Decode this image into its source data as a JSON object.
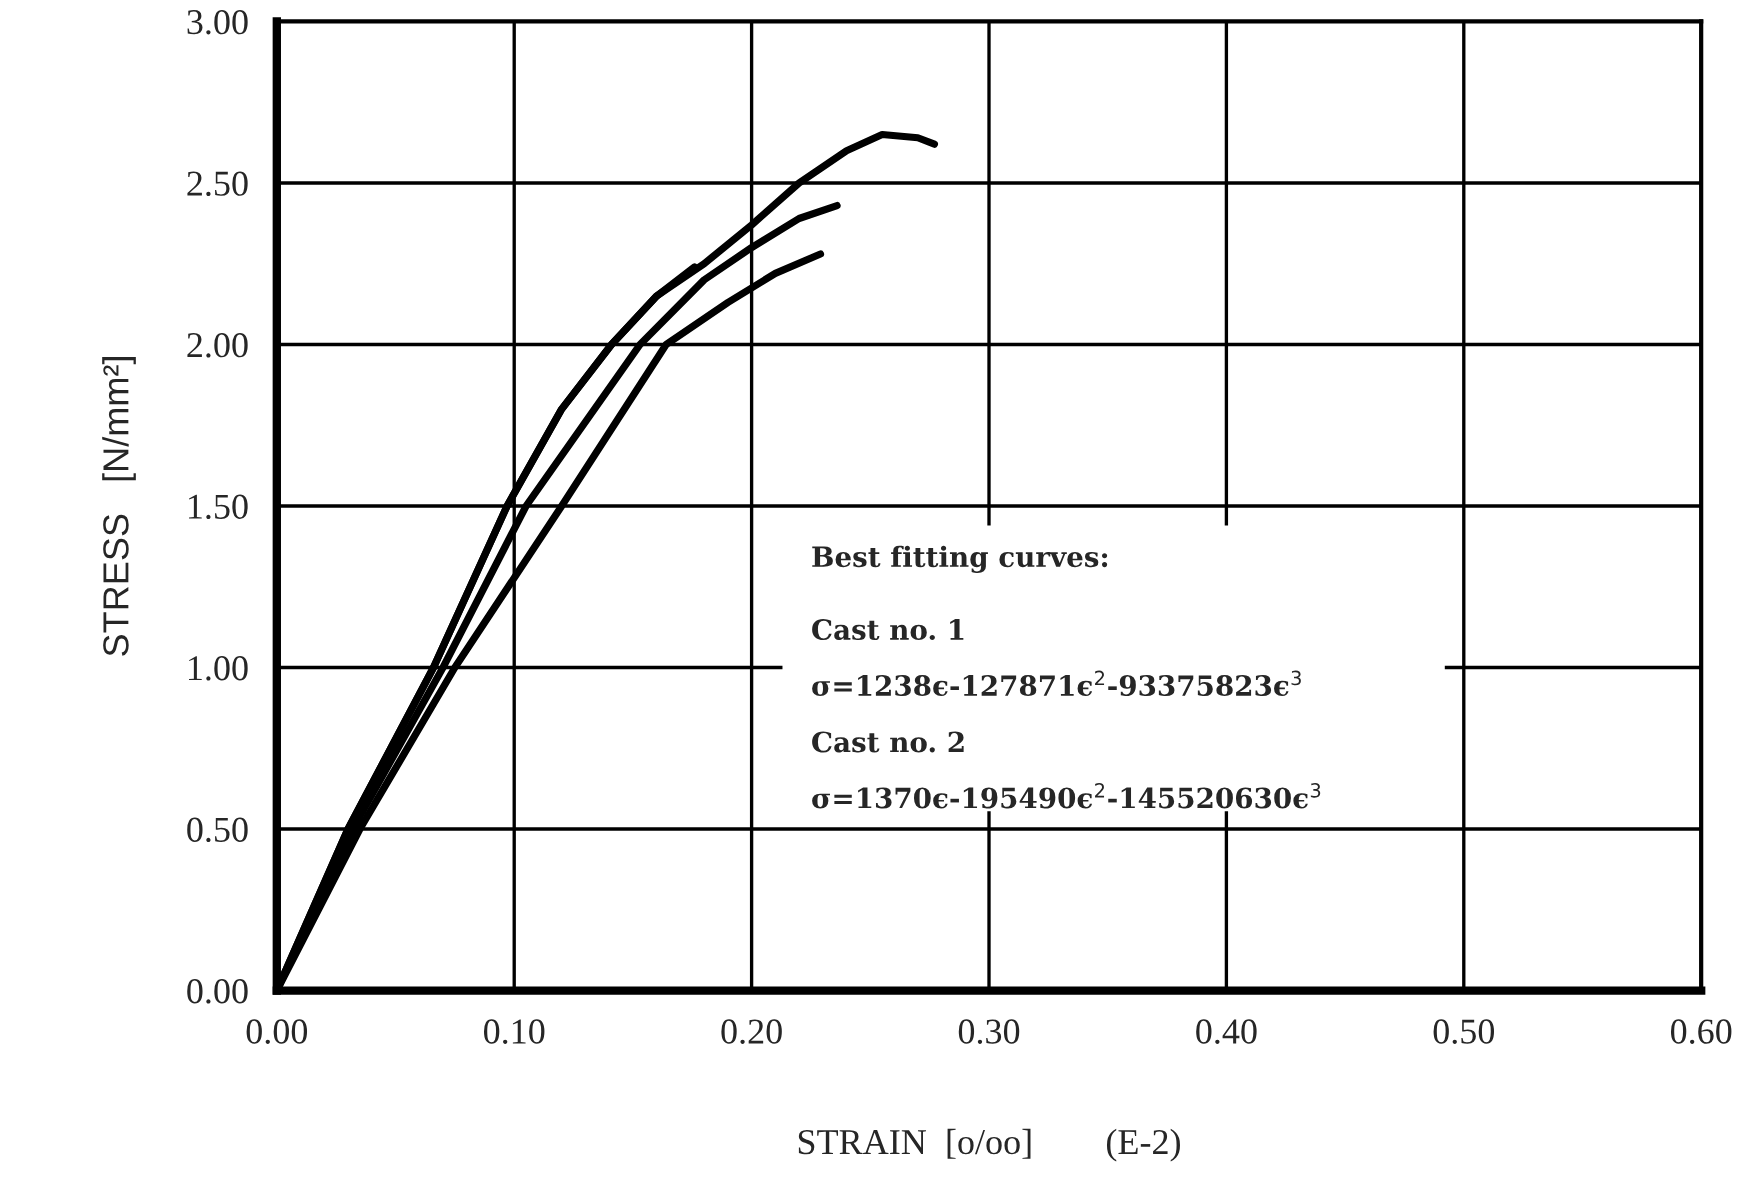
{
  "chart_data": {
    "type": "line",
    "xlabel": "STRAIN  [o/oo]        (E-2)",
    "ylabel": "STRESS   [N/mm²]",
    "annotations": [
      "Best fitting curves:",
      "Cast no. 1",
      "σ=1238ϵ-127871ϵ$^{2}$-93375823ϵ$^{3}$",
      "Cast no. 2",
      "σ=1370ϵ-195490ϵ$^{2}$-145520630ϵ$^{3}$"
    ],
    "xlim": [
      0,
      0.6
    ],
    "ylim": [
      0,
      3.0
    ],
    "xticks": [
      {
        "value": 0,
        "label": "0.00"
      },
      {
        "value": 0.1,
        "label": "0.10"
      },
      {
        "value": 0.2,
        "label": "0.20"
      },
      {
        "value": 0.3,
        "label": "0.30"
      },
      {
        "value": 0.4,
        "label": "0.40"
      },
      {
        "value": 0.5,
        "label": "0.50"
      },
      {
        "value": 0.6,
        "label": "0.60"
      }
    ],
    "yticks": [
      {
        "value": 0,
        "label": "0.00"
      },
      {
        "value": 0.5,
        "label": "0.50"
      },
      {
        "value": 1.0,
        "label": "1.00"
      },
      {
        "value": 1.5,
        "label": "1.50"
      },
      {
        "value": 2.0,
        "label": "2.00"
      },
      {
        "value": 2.5,
        "label": "2.50"
      },
      {
        "value": 3.0,
        "label": "3.00"
      }
    ],
    "grid": true,
    "legend": false,
    "marker": "none",
    "line_style": "solid",
    "series": [
      {
        "color": "#000000",
        "x": [
          0,
          0.03,
          0.066,
          0.097,
          0.12,
          0.141,
          0.16,
          0.18,
          0.2,
          0.22,
          0.24,
          0.255,
          0.27,
          0.277
        ],
        "values": [
          0,
          0.5,
          1.0,
          1.5,
          1.8,
          2.0,
          2.15,
          2.25,
          2.37,
          2.5,
          2.6,
          2.65,
          2.64,
          2.62
        ]
      },
      {
        "color": "#000000",
        "x": [
          0,
          0.03,
          0.066,
          0.097,
          0.12,
          0.141,
          0.16,
          0.176
        ],
        "values": [
          0,
          0.5,
          1.0,
          1.5,
          1.8,
          2.0,
          2.15,
          2.24
        ]
      },
      {
        "color": "#000000",
        "x": [
          0,
          0.032,
          0.07,
          0.105,
          0.153,
          0.18,
          0.2,
          0.22,
          0.236
        ],
        "values": [
          0,
          0.5,
          1.0,
          1.5,
          2.0,
          2.2,
          2.3,
          2.39,
          2.43
        ]
      },
      {
        "color": "#000000",
        "x": [
          0,
          0.035,
          0.075,
          0.12,
          0.164,
          0.19,
          0.21,
          0.229
        ],
        "values": [
          0,
          0.5,
          1.0,
          1.5,
          2.0,
          2.13,
          2.22,
          2.28
        ]
      }
    ]
  }
}
